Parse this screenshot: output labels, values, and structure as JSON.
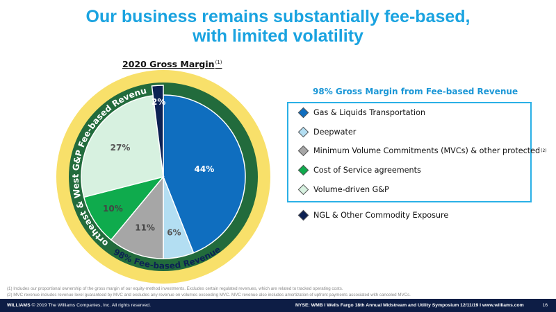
{
  "slide": {
    "title_line1": "Our business remains substantially fee-based,",
    "title_line2": "with limited volatility"
  },
  "chart_heading": {
    "title": "2020 Gross Margin",
    "footnote_ref": "(1)"
  },
  "chart_data": {
    "type": "pie",
    "title": "2020 Gross Margin",
    "slices": [
      {
        "label": "Gas & Liquids Transportation",
        "value": 44,
        "display": "44%",
        "color": "#0f6ebf"
      },
      {
        "label": "Deepwater",
        "value": 6,
        "display": "6%",
        "color": "#b3def2"
      },
      {
        "label": "Minimum Volume Commitments (MVCs) & other protected",
        "value": 11,
        "display": "11%",
        "color": "#a6a6a6"
      },
      {
        "label": "Cost of Service agreements",
        "value": 10,
        "display": "10%",
        "color": "#0fab4d"
      },
      {
        "label": "Volume-driven G&P",
        "value": 27,
        "display": "27%",
        "color": "#d7f1e0"
      },
      {
        "label": "NGL & Other Commodity Exposure",
        "value": 2,
        "display": "2%",
        "color": "#0c2153"
      }
    ],
    "inner_ring_label": "Northeast & West G&P Fee-based Revenue",
    "outer_ring_label": "98% Fee-based Revenue",
    "colors": {
      "outer_ring": "#f8e06a",
      "inner_ring": "#226b3c"
    }
  },
  "legend": {
    "heading": "98% Gross Margin from Fee-based Revenue",
    "items": [
      {
        "label": "Gas & Liquids Transportation",
        "color": "#0f6ebf"
      },
      {
        "label": "Deepwater",
        "color": "#b3def2"
      },
      {
        "label": "Minimum Volume Commitments (MVCs) & other protected",
        "color": "#a6a6a6",
        "note": "(2)"
      },
      {
        "label": "Cost of Service agreements",
        "color": "#0fab4d"
      },
      {
        "label": "Volume-driven G&P",
        "color": "#d7f1e0"
      }
    ],
    "outside_item": {
      "label": "NGL & Other Commodity Exposure",
      "color": "#0c2153"
    }
  },
  "footnotes": {
    "line1": "(1)   Includes our proportional ownership of the gross margin of our equity-method investments. Excludes certain regulated revenues, which are related to tracked operating costs.",
    "line2": "(2)   MVC revenue includes revenue level guaranteed by MVC and excludes any revenue on volumes exceeding MVC. MVC revenue also includes amortization of upfront payments associated with canceled MVCs."
  },
  "footer": {
    "company": "WILLIAMS",
    "copyright": "© 2019 The Williams Companies, Inc. All rights reserved.",
    "event": "NYSE: WMB   I   Wells Fargo 18th Annual Midstream and Utility Symposium 12/11/19   I   www.williams.com",
    "page": "16"
  }
}
